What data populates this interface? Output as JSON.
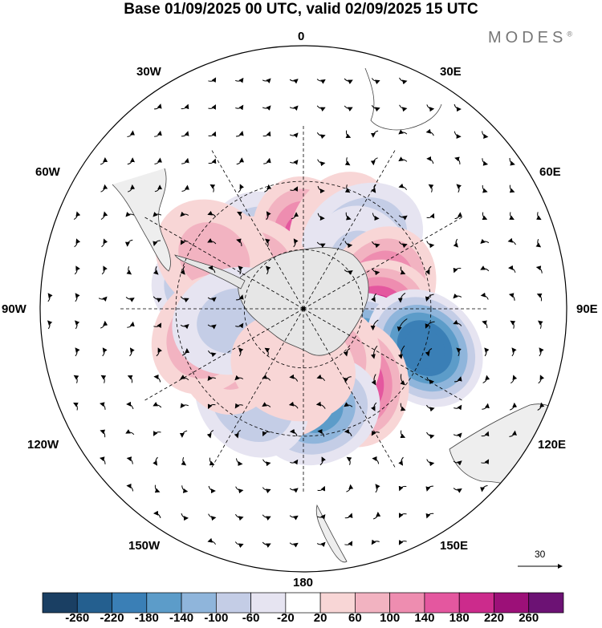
{
  "title": "Base 01/09/2025 00 UTC, valid 02/09/2025 15 UTC",
  "logo": "MODES",
  "logo_mark": "®",
  "longitude_labels": {
    "l0": "0",
    "l30e": "30E",
    "l60e": "60E",
    "l90e": "90E",
    "l120e": "120E",
    "l150e": "150E",
    "l180": "180",
    "l150w": "150W",
    "l120w": "120W",
    "l90w": "90W",
    "l60w": "60W",
    "l30w": "30W"
  },
  "wind_reference_vector": "30",
  "colorbar": {
    "colors": [
      "#1a3f63",
      "#245f8f",
      "#3a7fb6",
      "#5c9cc9",
      "#8fb5db",
      "#c4cde6",
      "#e6e4f1",
      "#ffffff",
      "#f8d6d6",
      "#f2b3c1",
      "#ee8db0",
      "#e4579f",
      "#cc2b8c",
      "#9c1078",
      "#6c1274"
    ],
    "ticks": [
      "-260",
      "-220",
      "-180",
      "-140",
      "-100",
      "-60",
      "-20",
      "20",
      "60",
      "100",
      "140",
      "180",
      "220",
      "260"
    ]
  },
  "anomalies": [
    {
      "lat": -45,
      "lon": -75,
      "value": -160
    },
    {
      "lat": -55,
      "lon": -30,
      "value": -120
    },
    {
      "lat": -55,
      "lon": 2,
      "value": 140
    },
    {
      "lat": -48,
      "lon": 28,
      "value": 60
    },
    {
      "lat": -45,
      "lon": 40,
      "value": -120
    },
    {
      "lat": -55,
      "lon": -55,
      "value": 100
    },
    {
      "lat": -40,
      "lon": -60,
      "value": 60
    },
    {
      "lat": -55,
      "lon": 55,
      "value": -80
    },
    {
      "lat": -50,
      "lon": 75,
      "value": 140
    },
    {
      "lat": -55,
      "lon": 95,
      "value": 200
    },
    {
      "lat": -55,
      "lon": 122,
      "value": -200
    },
    {
      "lat": -30,
      "lon": 108,
      "value": -220
    },
    {
      "lat": -45,
      "lon": 145,
      "value": 200
    },
    {
      "lat": -58,
      "lon": 160,
      "value": 100
    },
    {
      "lat": -40,
      "lon": 172,
      "value": -160
    },
    {
      "lat": -50,
      "lon": -160,
      "value": 60
    },
    {
      "lat": -40,
      "lon": -150,
      "value": -100
    },
    {
      "lat": -48,
      "lon": -120,
      "value": 60
    },
    {
      "lat": -42,
      "lon": -105,
      "value": 120
    },
    {
      "lat": -55,
      "lon": -100,
      "value": -80
    },
    {
      "lat": -60,
      "lon": -170,
      "value": 40
    }
  ]
}
